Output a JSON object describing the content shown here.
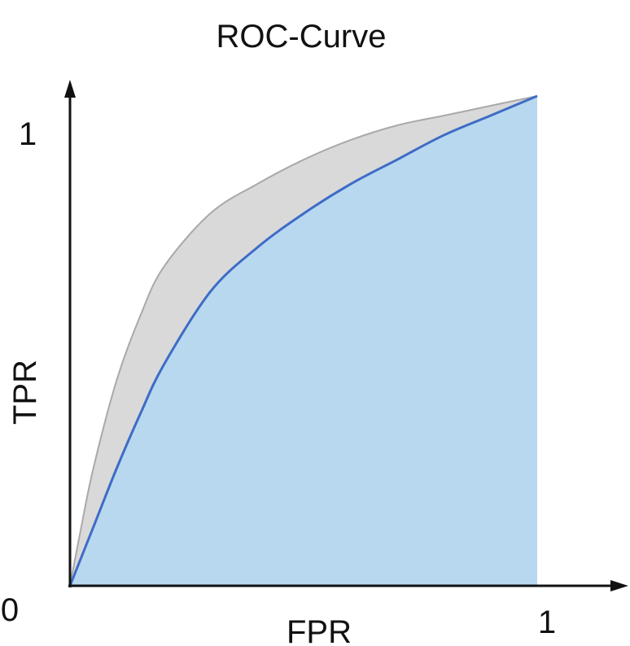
{
  "chart_data": {
    "type": "area",
    "title": "ROC-Curve",
    "xlabel": "FPR",
    "ylabel": "TPR",
    "xlim": [
      0,
      1
    ],
    "ylim": [
      0,
      1
    ],
    "origin_label": "0",
    "x_tick_labels": [
      {
        "value": 1,
        "label": "1"
      }
    ],
    "y_tick_labels": [
      {
        "value": 1,
        "label": "1"
      }
    ],
    "grid": false,
    "series": [
      {
        "role": "upper-curve",
        "color": "#a9a9a9",
        "fill": "#d9d9d9",
        "points": [
          [
            0,
            0
          ],
          [
            0.02,
            0.1
          ],
          [
            0.05,
            0.24
          ],
          [
            0.1,
            0.42
          ],
          [
            0.15,
            0.55
          ],
          [
            0.2,
            0.65
          ],
          [
            0.3,
            0.76
          ],
          [
            0.4,
            0.82
          ],
          [
            0.5,
            0.87
          ],
          [
            0.6,
            0.91
          ],
          [
            0.7,
            0.94
          ],
          [
            0.8,
            0.96
          ],
          [
            0.9,
            0.98
          ],
          [
            1,
            1
          ]
        ]
      },
      {
        "role": "lower-curve",
        "color": "#3d6cc6",
        "fill": "#b8d8f0",
        "points": [
          [
            0,
            0
          ],
          [
            0.05,
            0.12
          ],
          [
            0.1,
            0.24
          ],
          [
            0.15,
            0.35
          ],
          [
            0.2,
            0.45
          ],
          [
            0.3,
            0.6
          ],
          [
            0.4,
            0.69
          ],
          [
            0.5,
            0.76
          ],
          [
            0.6,
            0.82
          ],
          [
            0.7,
            0.87
          ],
          [
            0.8,
            0.92
          ],
          [
            0.9,
            0.96
          ],
          [
            1,
            1
          ]
        ]
      }
    ]
  }
}
